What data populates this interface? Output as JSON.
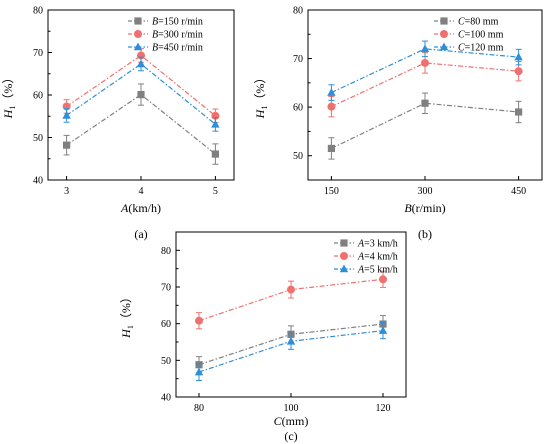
{
  "chart_data": [
    {
      "type": "line",
      "panel_label": "(a)",
      "xlabel_var": "A",
      "xlabel_unit": "(km/h)",
      "ylabel_var": "H",
      "ylabel_sub": "1",
      "ylabel_unit": "（%）",
      "categories": [
        "3",
        "4",
        "5"
      ],
      "ylim": [
        40,
        80
      ],
      "yticks": [
        40,
        50,
        60,
        70,
        80
      ],
      "legend_position": "top-right",
      "series": [
        {
          "name_var": "B",
          "name_rest": "=150 r/min",
          "marker": "square",
          "color": "#808080",
          "values": [
            48.2,
            60.1,
            46.1
          ],
          "errors": [
            2.3,
            2.5,
            2.4
          ]
        },
        {
          "name_var": "B",
          "name_rest": "=300 r/min",
          "marker": "circle",
          "color": "#f07070",
          "values": [
            57.3,
            69.3,
            55.1
          ],
          "errors": [
            1.6,
            1.6,
            1.6
          ]
        },
        {
          "name_var": "B",
          "name_rest": "=450 r/min",
          "marker": "triangle",
          "color": "#2e8fd9",
          "values": [
            55.2,
            67.3,
            53.1
          ],
          "errors": [
            1.6,
            1.6,
            1.6
          ]
        }
      ]
    },
    {
      "type": "line",
      "panel_label": "(b)",
      "xlabel_var": "B",
      "xlabel_unit": "(r/min)",
      "ylabel_var": "H",
      "ylabel_sub": "1",
      "ylabel_unit": "（%）",
      "categories": [
        "150",
        "300",
        "450"
      ],
      "ylim": [
        45,
        80
      ],
      "yticks": [
        50,
        60,
        70,
        80
      ],
      "legend_position": "top-right",
      "series": [
        {
          "name_var": "C",
          "name_rest": "=80 mm",
          "marker": "square",
          "color": "#808080",
          "values": [
            51.5,
            60.8,
            59.0
          ],
          "errors": [
            2.2,
            2.1,
            2.2
          ]
        },
        {
          "name_var": "C",
          "name_rest": "=100 mm",
          "marker": "circle",
          "color": "#f07070",
          "values": [
            60.1,
            69.1,
            67.4
          ],
          "errors": [
            2.1,
            2.1,
            2.0
          ]
        },
        {
          "name_var": "C",
          "name_rest": "=120 mm",
          "marker": "triangle",
          "color": "#2e8fd9",
          "values": [
            63.0,
            72.0,
            70.3
          ],
          "errors": [
            1.6,
            1.6,
            1.6
          ]
        }
      ]
    },
    {
      "type": "line",
      "panel_label": "(c)",
      "xlabel_var": "C",
      "xlabel_unit": "(mm)",
      "ylabel_var": "H",
      "ylabel_sub": "1",
      "ylabel_unit": "（%）",
      "categories": [
        "80",
        "100",
        "120"
      ],
      "ylim": [
        40,
        85
      ],
      "yticks": [
        40,
        50,
        60,
        70,
        80
      ],
      "legend_position": "top-right",
      "series": [
        {
          "name_var": "A",
          "name_rest": "=3 km/h",
          "marker": "square",
          "color": "#808080",
          "values": [
            48.8,
            57.1,
            59.9
          ],
          "errors": [
            2.2,
            2.3,
            2.3
          ]
        },
        {
          "name_var": "A",
          "name_rest": "=4 km/h",
          "marker": "circle",
          "color": "#f07070",
          "values": [
            60.8,
            69.3,
            72.1
          ],
          "errors": [
            2.2,
            2.3,
            2.2
          ]
        },
        {
          "name_var": "A",
          "name_rest": "=5 km/h",
          "marker": "triangle",
          "color": "#2e8fd9",
          "values": [
            46.8,
            55.2,
            58.1
          ],
          "errors": [
            2.3,
            2.2,
            2.2
          ]
        }
      ]
    }
  ]
}
